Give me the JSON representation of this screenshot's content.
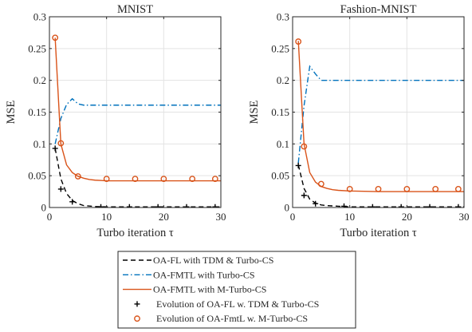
{
  "chart_data": [
    {
      "type": "line",
      "title": "MNIST",
      "xlabel": "Turbo iteration τ",
      "ylabel": "MSE",
      "xlim": [
        0,
        30
      ],
      "ylim": [
        0,
        0.3
      ],
      "xticks": [
        0,
        10,
        20,
        30
      ],
      "yticks": [
        0,
        0.05,
        0.1,
        0.15,
        0.2,
        0.25,
        0.3
      ],
      "yticklabels": [
        "0",
        "0.05",
        "0.1",
        "0.15",
        "0.2",
        "0.25",
        "0.3"
      ],
      "grid": true,
      "series": [
        {
          "name": "OA-FL with TDM & Turbo-CS",
          "style": "dashed",
          "color": "#000000",
          "x": [
            1,
            2,
            3,
            4,
            5,
            6,
            8,
            10,
            15,
            20,
            25,
            30
          ],
          "y": [
            0.093,
            0.045,
            0.022,
            0.011,
            0.006,
            0.003,
            0.0015,
            0.001,
            0.001,
            0.001,
            0.001,
            0.001
          ]
        },
        {
          "name": "OA-FMTL with Turbo-CS",
          "style": "dashdot",
          "color": "#0072BD",
          "x": [
            1,
            2,
            3,
            4,
            5,
            6,
            8,
            10,
            15,
            20,
            25,
            30
          ],
          "y": [
            0.1,
            0.14,
            0.162,
            0.171,
            0.163,
            0.161,
            0.161,
            0.161,
            0.161,
            0.161,
            0.161,
            0.161
          ]
        },
        {
          "name": "OA-FMTL with M-Turbo-CS",
          "style": "solid",
          "color": "#D95319",
          "x": [
            1,
            2,
            3,
            4,
            5,
            6,
            7,
            8,
            10,
            15,
            20,
            25,
            30
          ],
          "y": [
            0.267,
            0.1,
            0.067,
            0.055,
            0.049,
            0.046,
            0.044,
            0.043,
            0.042,
            0.042,
            0.042,
            0.042,
            0.042
          ]
        },
        {
          "name": "Evolution of OA-FL w. TDM & Turbo-CS",
          "marker": "+",
          "color": "#000000",
          "x": [
            1,
            2,
            4,
            9,
            14,
            19,
            24,
            29
          ],
          "y": [
            0.093,
            0.029,
            0.009,
            0.001,
            0.001,
            0.001,
            0.001,
            0.001
          ]
        },
        {
          "name": "Evolution of OA-FmtL w. M-Turbo-CS",
          "marker": "o",
          "color": "#D95319",
          "x": [
            1,
            2,
            5,
            10,
            15,
            20,
            25,
            29
          ],
          "y": [
            0.267,
            0.101,
            0.049,
            0.045,
            0.045,
            0.045,
            0.045,
            0.045
          ]
        }
      ]
    },
    {
      "type": "line",
      "title": "Fashion-MNIST",
      "xlabel": "Turbo iteration τ",
      "ylabel": "MSE",
      "xlim": [
        0,
        30
      ],
      "ylim": [
        0,
        0.3
      ],
      "xticks": [
        0,
        10,
        20,
        30
      ],
      "yticks": [
        0,
        0.05,
        0.1,
        0.15,
        0.2,
        0.25,
        0.3
      ],
      "yticklabels": [
        "0",
        "0.05",
        "0.1",
        "0.15",
        "0.2",
        "0.25",
        "0.3"
      ],
      "grid": true,
      "series": [
        {
          "name": "OA-FL with TDM & Turbo-CS",
          "style": "dashed",
          "color": "#000000",
          "x": [
            1,
            2,
            3,
            4,
            5,
            6,
            8,
            10,
            15,
            20,
            25,
            30
          ],
          "y": [
            0.067,
            0.03,
            0.013,
            0.007,
            0.004,
            0.003,
            0.002,
            0.001,
            0.001,
            0.001,
            0.001,
            0.001
          ]
        },
        {
          "name": "OA-FMTL with Turbo-CS",
          "style": "dashdot",
          "color": "#0072BD",
          "x": [
            1,
            2,
            3,
            4,
            5,
            6,
            8,
            10,
            15,
            20,
            25,
            30
          ],
          "y": [
            0.07,
            0.16,
            0.222,
            0.21,
            0.2,
            0.2,
            0.2,
            0.2,
            0.2,
            0.2,
            0.2,
            0.2
          ]
        },
        {
          "name": "OA-FMTL with M-Turbo-CS",
          "style": "solid",
          "color": "#D95319",
          "x": [
            1,
            2,
            3,
            4,
            5,
            6,
            7,
            8,
            10,
            15,
            20,
            25,
            30
          ],
          "y": [
            0.262,
            0.1,
            0.055,
            0.04,
            0.033,
            0.03,
            0.028,
            0.027,
            0.026,
            0.025,
            0.025,
            0.025,
            0.025
          ]
        },
        {
          "name": "Evolution of OA-FL w. TDM & Turbo-CS",
          "marker": "+",
          "color": "#000000",
          "x": [
            1,
            2,
            4,
            9,
            14,
            19,
            24,
            29
          ],
          "y": [
            0.066,
            0.019,
            0.006,
            0.002,
            0.001,
            0.001,
            0.001,
            0.001
          ]
        },
        {
          "name": "Evolution of OA-FmtL w. M-Turbo-CS",
          "marker": "o",
          "color": "#D95319",
          "x": [
            1,
            2,
            5,
            10,
            15,
            20,
            25,
            29
          ],
          "y": [
            0.261,
            0.096,
            0.037,
            0.029,
            0.029,
            0.029,
            0.029,
            0.029
          ]
        }
      ]
    }
  ],
  "legend": {
    "placement": "bottom-center",
    "items": [
      {
        "label": "OA-FL with TDM & Turbo-CS"
      },
      {
        "label": "OA-FMTL with Turbo-CS"
      },
      {
        "label": "OA-FMTL with M-Turbo-CS"
      },
      {
        "label": "Evolution of OA-FL w. TDM & Turbo-CS"
      },
      {
        "label": "Evolution of OA-FmtL w. M-Turbo-CS"
      }
    ]
  }
}
